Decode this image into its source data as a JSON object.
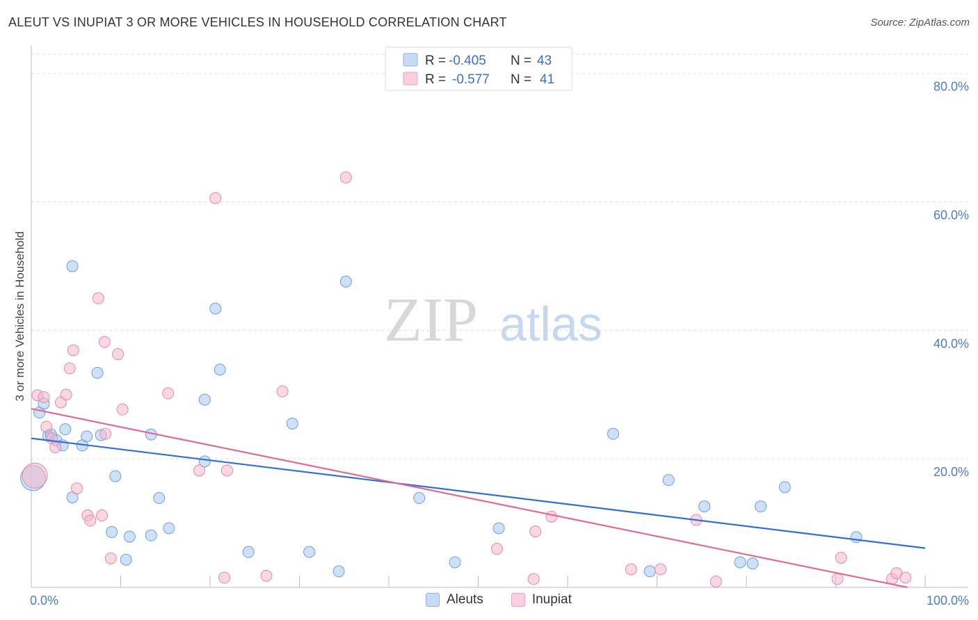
{
  "header": {
    "title": "ALEUT VS INUPIAT 3 OR MORE VEHICLES IN HOUSEHOLD CORRELATION CHART",
    "source": "Source: ZipAtlas.com"
  },
  "watermark": {
    "zip": "ZIP",
    "atlas": "atlas"
  },
  "legend": {
    "rows": [
      {
        "r_label": "R =",
        "r_value": "-0.405",
        "n_label": "N =",
        "n_value": "43",
        "color": "#a8c8f0"
      },
      {
        "r_label": "R =",
        "r_value": "-0.577",
        "n_label": "N =",
        "n_value": "41",
        "color": "#f5b8cb"
      }
    ]
  },
  "bottom_legend": [
    {
      "label": "Aleuts",
      "color": "#a8c8f0"
    },
    {
      "label": "Inupiat",
      "color": "#f5b8cb"
    }
  ],
  "chart_data": {
    "type": "scatter",
    "title": "ALEUT VS INUPIAT 3 OR MORE VEHICLES IN HOUSEHOLD CORRELATION CHART",
    "xlabel": "",
    "ylabel": "3 or more Vehicles in Household",
    "xlim": [
      0,
      100
    ],
    "ylim": [
      0,
      83
    ],
    "x_ticks": [
      "0.0%",
      "100.0%"
    ],
    "y_ticks": [
      {
        "value": 20,
        "label": "20.0%"
      },
      {
        "value": 40,
        "label": "40.0%"
      },
      {
        "value": 60,
        "label": "60.0%"
      },
      {
        "value": 80,
        "label": "80.0%"
      }
    ],
    "grid": true,
    "legend_position": "top-center",
    "series": [
      {
        "name": "Aleuts",
        "color": "#6a9ee0",
        "fill": "#a8c8f0",
        "trend": {
          "x": [
            0,
            100
          ],
          "y": [
            23.2,
            6.1
          ]
        },
        "points": [
          [
            0.2,
            17.0
          ],
          [
            0.9,
            27.2
          ],
          [
            1.4,
            28.6
          ],
          [
            1.9,
            23.6
          ],
          [
            2.2,
            23.8
          ],
          [
            2.8,
            22.9
          ],
          [
            3.5,
            22.1
          ],
          [
            3.8,
            24.6
          ],
          [
            4.6,
            14.0
          ],
          [
            4.6,
            50.0
          ],
          [
            5.7,
            22.1
          ],
          [
            6.2,
            23.5
          ],
          [
            7.4,
            33.4
          ],
          [
            7.8,
            23.7
          ],
          [
            9.0,
            8.6
          ],
          [
            9.4,
            17.3
          ],
          [
            10.6,
            4.3
          ],
          [
            11.0,
            7.9
          ],
          [
            13.4,
            23.8
          ],
          [
            13.4,
            8.1
          ],
          [
            14.3,
            13.9
          ],
          [
            15.4,
            9.2
          ],
          [
            19.4,
            19.6
          ],
          [
            19.4,
            29.2
          ],
          [
            20.6,
            43.4
          ],
          [
            21.1,
            33.9
          ],
          [
            24.3,
            5.5
          ],
          [
            29.2,
            25.5
          ],
          [
            31.1,
            5.5
          ],
          [
            34.4,
            2.5
          ],
          [
            35.2,
            47.6
          ],
          [
            43.4,
            13.9
          ],
          [
            47.4,
            3.9
          ],
          [
            52.3,
            9.2
          ],
          [
            65.1,
            23.9
          ],
          [
            69.2,
            2.5
          ],
          [
            71.3,
            16.7
          ],
          [
            75.3,
            12.6
          ],
          [
            79.3,
            3.9
          ],
          [
            80.7,
            3.7
          ],
          [
            81.6,
            12.6
          ],
          [
            84.3,
            15.6
          ],
          [
            92.3,
            7.8
          ]
        ]
      },
      {
        "name": "Inupiat",
        "color": "#e38aa6",
        "fill": "#f5b8cb",
        "trend": {
          "x": [
            0,
            98
          ],
          "y": [
            27.8,
            0.0
          ]
        },
        "points": [
          [
            0.4,
            17.4
          ],
          [
            0.7,
            29.9
          ],
          [
            1.4,
            29.6
          ],
          [
            1.7,
            25.0
          ],
          [
            2.3,
            23.2
          ],
          [
            2.7,
            21.8
          ],
          [
            3.3,
            28.8
          ],
          [
            3.9,
            30.0
          ],
          [
            4.3,
            34.1
          ],
          [
            4.7,
            36.9
          ],
          [
            5.1,
            15.4
          ],
          [
            6.3,
            11.2
          ],
          [
            6.6,
            10.4
          ],
          [
            7.5,
            45.0
          ],
          [
            7.9,
            11.2
          ],
          [
            8.2,
            38.2
          ],
          [
            8.3,
            23.9
          ],
          [
            8.9,
            4.5
          ],
          [
            9.7,
            36.3
          ],
          [
            10.2,
            27.7
          ],
          [
            15.3,
            30.2
          ],
          [
            18.8,
            18.2
          ],
          [
            20.6,
            60.6
          ],
          [
            21.6,
            1.5
          ],
          [
            21.9,
            18.2
          ],
          [
            26.3,
            1.8
          ],
          [
            28.1,
            30.5
          ],
          [
            35.2,
            63.8
          ],
          [
            52.1,
            6.0
          ],
          [
            56.2,
            1.3
          ],
          [
            56.4,
            8.7
          ],
          [
            58.2,
            11.0
          ],
          [
            67.1,
            2.8
          ],
          [
            70.4,
            2.8
          ],
          [
            74.4,
            10.5
          ],
          [
            76.6,
            0.9
          ],
          [
            90.2,
            1.3
          ],
          [
            90.6,
            4.6
          ],
          [
            96.3,
            1.3
          ],
          [
            96.8,
            2.2
          ],
          [
            97.8,
            1.5
          ]
        ]
      }
    ]
  }
}
